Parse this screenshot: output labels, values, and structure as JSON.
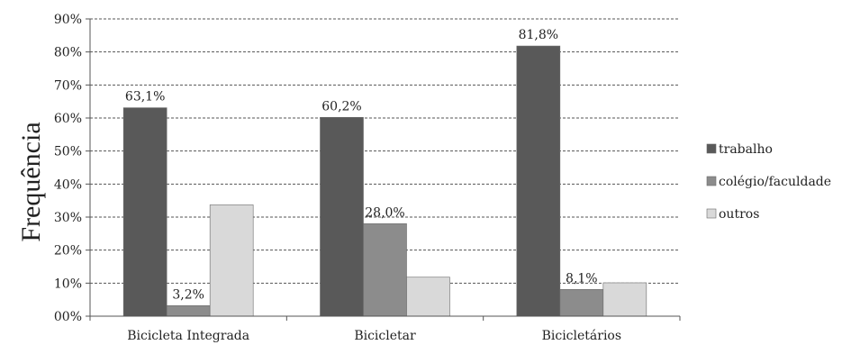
{
  "chart_data": {
    "type": "bar",
    "ylabel": "Frequência",
    "xlabel": "",
    "ylim": [
      0,
      90
    ],
    "yticks": [
      "00%",
      "10%",
      "20%",
      "30%",
      "40%",
      "50%",
      "60%",
      "70%",
      "80%",
      "90%"
    ],
    "grid": "horizontal-dashed",
    "legend_position": "right",
    "categories": [
      "Bicicleta Integrada",
      "Bicicletar",
      "Bicicletários"
    ],
    "series": [
      {
        "name": "trabalho",
        "color": "#595959",
        "values": [
          63.1,
          60.2,
          81.8
        ],
        "labels": [
          "63,1%",
          "60,2%",
          "81,8%"
        ]
      },
      {
        "name": "colégio/faculdade",
        "color": "#8c8c8c",
        "values": [
          3.2,
          28.0,
          8.1
        ],
        "labels": [
          "3,2%",
          "28,0%",
          "8,1%"
        ]
      },
      {
        "name": "outros",
        "color": "#d9d9d9",
        "values": [
          33.7,
          11.8,
          10.1
        ],
        "labels": [
          "",
          "",
          ""
        ]
      }
    ]
  }
}
